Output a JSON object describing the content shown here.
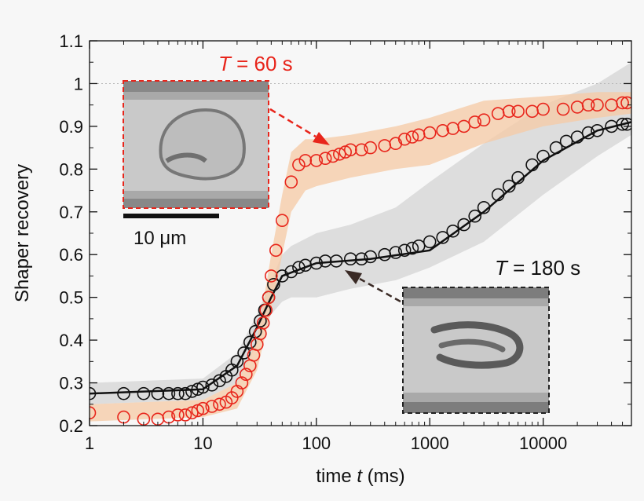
{
  "chart_data": {
    "type": "scatter",
    "title": "",
    "xlabel": {
      "prefix": "time ",
      "var": "t",
      "suffix": " (ms)"
    },
    "ylabel": "Shaper recovery",
    "xscale": "log",
    "xlim": [
      1,
      60000
    ],
    "ylim": [
      0.2,
      1.1
    ],
    "xticks": [
      {
        "value": 1,
        "label": "1"
      },
      {
        "value": 10,
        "label": "10"
      },
      {
        "value": 100,
        "label": "100"
      },
      {
        "value": 1000,
        "label": "1000"
      },
      {
        "value": 10000,
        "label": "10000"
      }
    ],
    "yticks": [
      {
        "value": 0.2,
        "label": "0.2"
      },
      {
        "value": 0.3,
        "label": "0.3"
      },
      {
        "value": 0.4,
        "label": "0.4"
      },
      {
        "value": 0.5,
        "label": "0.5"
      },
      {
        "value": 0.6,
        "label": "0.6"
      },
      {
        "value": 0.7,
        "label": "0.7"
      },
      {
        "value": 0.8,
        "label": "0.8"
      },
      {
        "value": 0.9,
        "label": "0.9"
      },
      {
        "value": 1,
        "label": "1"
      },
      {
        "value": 1.1,
        "label": "1.1"
      }
    ],
    "reference_line": {
      "y": 1,
      "style": "dotted"
    },
    "series": [
      {
        "color": "#e8251b",
        "band_color": "#f6c9a4",
        "marker": "open-circle",
        "points": [
          [
            1,
            0.23
          ],
          [
            2,
            0.22
          ],
          [
            3,
            0.215
          ],
          [
            4,
            0.215
          ],
          [
            5,
            0.22
          ],
          [
            6,
            0.225
          ],
          [
            7,
            0.225
          ],
          [
            8,
            0.23
          ],
          [
            9,
            0.235
          ],
          [
            10,
            0.24
          ],
          [
            12,
            0.245
          ],
          [
            14,
            0.25
          ],
          [
            16,
            0.255
          ],
          [
            18,
            0.265
          ],
          [
            20,
            0.28
          ],
          [
            22,
            0.3
          ],
          [
            24,
            0.32
          ],
          [
            26,
            0.34
          ],
          [
            28,
            0.365
          ],
          [
            30,
            0.39
          ],
          [
            32,
            0.415
          ],
          [
            34,
            0.44
          ],
          [
            36,
            0.47
          ],
          [
            38,
            0.5
          ],
          [
            40,
            0.55
          ],
          [
            44,
            0.61
          ],
          [
            50,
            0.68
          ],
          [
            60,
            0.77
          ],
          [
            70,
            0.81
          ],
          [
            80,
            0.82
          ],
          [
            100,
            0.82
          ],
          [
            120,
            0.825
          ],
          [
            140,
            0.83
          ],
          [
            160,
            0.835
          ],
          [
            180,
            0.84
          ],
          [
            200,
            0.845
          ],
          [
            250,
            0.845
          ],
          [
            300,
            0.85
          ],
          [
            400,
            0.855
          ],
          [
            500,
            0.86
          ],
          [
            600,
            0.87
          ],
          [
            700,
            0.875
          ],
          [
            800,
            0.88
          ],
          [
            1000,
            0.885
          ],
          [
            1300,
            0.89
          ],
          [
            1600,
            0.895
          ],
          [
            2000,
            0.9
          ],
          [
            2500,
            0.91
          ],
          [
            3000,
            0.915
          ],
          [
            4000,
            0.93
          ],
          [
            5000,
            0.935
          ],
          [
            6000,
            0.935
          ],
          [
            8000,
            0.935
          ],
          [
            10000,
            0.94
          ],
          [
            15000,
            0.94
          ],
          [
            20000,
            0.945
          ],
          [
            25000,
            0.95
          ],
          [
            30000,
            0.95
          ],
          [
            40000,
            0.95
          ],
          [
            50000,
            0.955
          ],
          [
            55000,
            0.955
          ]
        ],
        "band": {
          "x": [
            1,
            10,
            20,
            30,
            40,
            50,
            60,
            80,
            100,
            200,
            500,
            1000,
            3000,
            10000,
            30000,
            60000
          ],
          "lower": [
            0.21,
            0.22,
            0.24,
            0.33,
            0.47,
            0.6,
            0.7,
            0.75,
            0.76,
            0.78,
            0.8,
            0.81,
            0.86,
            0.9,
            0.92,
            0.93
          ],
          "upper": [
            0.25,
            0.26,
            0.3,
            0.4,
            0.6,
            0.74,
            0.84,
            0.87,
            0.87,
            0.88,
            0.9,
            0.92,
            0.96,
            0.97,
            0.98,
            0.98
          ]
        }
      },
      {
        "color": "#111111",
        "band_color": "#d9d9d9",
        "marker": "open-circle",
        "points": [
          [
            1,
            0.275
          ],
          [
            2,
            0.275
          ],
          [
            3,
            0.275
          ],
          [
            4,
            0.275
          ],
          [
            5,
            0.275
          ],
          [
            6,
            0.275
          ],
          [
            7,
            0.275
          ],
          [
            8,
            0.28
          ],
          [
            9,
            0.285
          ],
          [
            10,
            0.29
          ],
          [
            12,
            0.295
          ],
          [
            14,
            0.305
          ],
          [
            16,
            0.315
          ],
          [
            18,
            0.33
          ],
          [
            20,
            0.35
          ],
          [
            23,
            0.37
          ],
          [
            26,
            0.395
          ],
          [
            29,
            0.42
          ],
          [
            32,
            0.445
          ],
          [
            35,
            0.47
          ],
          [
            38,
            0.5
          ],
          [
            42,
            0.53
          ],
          [
            50,
            0.55
          ],
          [
            60,
            0.56
          ],
          [
            70,
            0.57
          ],
          [
            80,
            0.575
          ],
          [
            100,
            0.58
          ],
          [
            120,
            0.585
          ],
          [
            150,
            0.585
          ],
          [
            200,
            0.59
          ],
          [
            250,
            0.59
          ],
          [
            300,
            0.595
          ],
          [
            400,
            0.6
          ],
          [
            500,
            0.605
          ],
          [
            600,
            0.61
          ],
          [
            700,
            0.615
          ],
          [
            800,
            0.62
          ],
          [
            1000,
            0.63
          ],
          [
            1300,
            0.64
          ],
          [
            1600,
            0.655
          ],
          [
            2000,
            0.67
          ],
          [
            2500,
            0.69
          ],
          [
            3000,
            0.71
          ],
          [
            4000,
            0.74
          ],
          [
            5000,
            0.76
          ],
          [
            6000,
            0.78
          ],
          [
            8000,
            0.81
          ],
          [
            10000,
            0.83
          ],
          [
            13000,
            0.85
          ],
          [
            16000,
            0.865
          ],
          [
            20000,
            0.875
          ],
          [
            25000,
            0.885
          ],
          [
            30000,
            0.89
          ],
          [
            40000,
            0.9
          ],
          [
            50000,
            0.905
          ],
          [
            55000,
            0.905
          ]
        ],
        "fit": {
          "x": [
            1,
            10,
            20,
            30,
            40,
            50,
            100,
            300,
            1000,
            3000,
            10000,
            30000,
            60000
          ],
          "y": [
            0.275,
            0.285,
            0.34,
            0.43,
            0.5,
            0.55,
            0.58,
            0.59,
            0.61,
            0.7,
            0.82,
            0.89,
            0.91
          ]
        },
        "band": {
          "x": [
            1,
            10,
            20,
            30,
            40,
            50,
            60,
            100,
            200,
            500,
            1000,
            3000,
            10000,
            30000,
            60000
          ],
          "lower": [
            0.25,
            0.26,
            0.3,
            0.39,
            0.46,
            0.49,
            0.5,
            0.5,
            0.52,
            0.54,
            0.57,
            0.63,
            0.74,
            0.83,
            0.88
          ],
          "upper": [
            0.3,
            0.31,
            0.37,
            0.46,
            0.54,
            0.6,
            0.62,
            0.65,
            0.67,
            0.71,
            0.77,
            0.86,
            0.95,
            1.0,
            1.05
          ]
        }
      }
    ],
    "annotations": [
      {
        "var": "T",
        "text": " = 60 s",
        "color": "#e8251b"
      },
      {
        "var": "T",
        "text": " = 180 s",
        "color": "#111111"
      }
    ],
    "scale_bar": {
      "label": "10 μm"
    }
  }
}
